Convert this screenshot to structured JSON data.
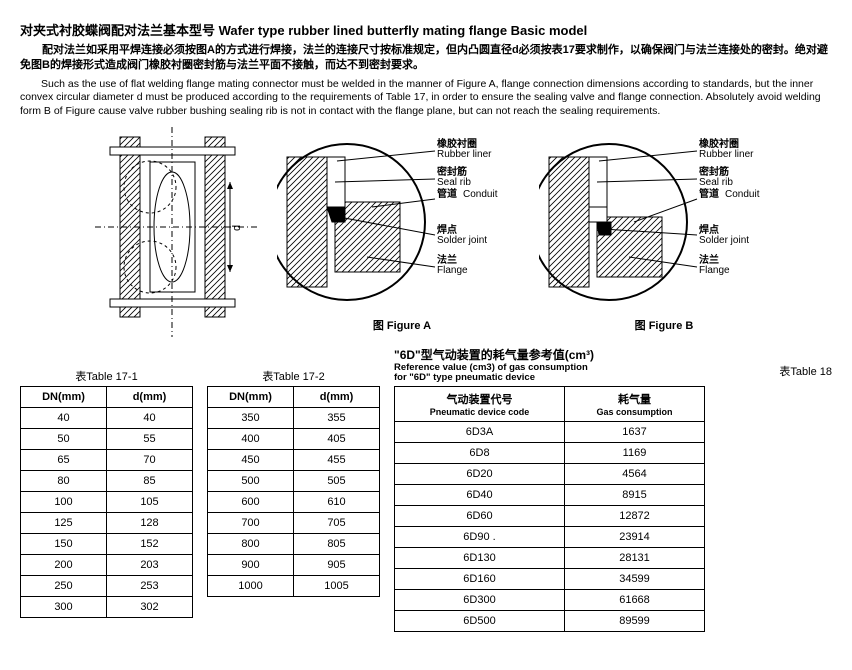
{
  "titles": {
    "main": "对夹式衬胶蝶阀配对法兰基本型号 Wafer type rubber lined butterfly mating flange Basic model",
    "para_cn": "配对法兰如采用平焊连接必须按图A的方式进行焊接，法兰的连接尺寸按标准规定，但内凸圆直径d必须按表17要求制作，以确保阀门与法兰连接处的密封。绝对避免图B的焊接形式造成阀门橡胶衬圈密封筋与法兰平面不接触，而达不到密封要求。",
    "para_en": "Such as the use of flat welding flange mating connector must be welded in the manner of Figure A, flange connection dimensions according to standards, but the inner convex circular diameter d must be produced according to the requirements of Table 17, in order to ensure the sealing valve and flange connection. Absolutely avoid welding form B of Figure cause valve rubber bushing sealing rib is not in contact with the flange plane, but can not reach the sealing requirements."
  },
  "fig_labels": {
    "rubber_liner_cn": "橡胶衬圈",
    "rubber_liner_en": "Rubber liner",
    "seal_rib_cn": "密封筋",
    "seal_rib_en": "Seal rib",
    "conduit_cn": "管道",
    "conduit_en": "Conduit",
    "solder_cn": "焊点",
    "solder_en": "Solder joint",
    "flange_cn": "法兰",
    "flange_en": "Flange",
    "figA": "图 Figure A",
    "figB": "图 Figure B",
    "d": "d"
  },
  "table17_1": {
    "caption": "表Table 17-1",
    "h1": "DN(mm)",
    "h2": "d(mm)",
    "rows": [
      [
        "40",
        "40"
      ],
      [
        "50",
        "55"
      ],
      [
        "65",
        "70"
      ],
      [
        "80",
        "85"
      ],
      [
        "100",
        "105"
      ],
      [
        "125",
        "128"
      ],
      [
        "150",
        "152"
      ],
      [
        "200",
        "203"
      ],
      [
        "250",
        "253"
      ],
      [
        "300",
        "302"
      ]
    ]
  },
  "table17_2": {
    "caption": "表Table 17-2",
    "h1": "DN(mm)",
    "h2": "d(mm)",
    "rows": [
      [
        "350",
        "355"
      ],
      [
        "400",
        "405"
      ],
      [
        "450",
        "455"
      ],
      [
        "500",
        "505"
      ],
      [
        "600",
        "610"
      ],
      [
        "700",
        "705"
      ],
      [
        "800",
        "805"
      ],
      [
        "900",
        "905"
      ],
      [
        "1000",
        "1005"
      ]
    ]
  },
  "table18": {
    "title_cn": "\"6D\"型气动装置的耗气量参考值(cm³)",
    "title_en1": "Reference value (cm3) of gas consumption",
    "title_en2": "for \"6D\" type pneumatic device",
    "caption": "表Table 18",
    "h1_cn": "气动装置代号",
    "h1_en": "Pneumatic device code",
    "h2_cn": "耗气量",
    "h2_en": "Gas consumption",
    "rows": [
      [
        "6D3A",
        "1637"
      ],
      [
        "6D8",
        "1169"
      ],
      [
        "6D20",
        "4564"
      ],
      [
        "6D40",
        "8915"
      ],
      [
        "6D60",
        "12872"
      ],
      [
        "6D90 .",
        "23914"
      ],
      [
        "6D130",
        "28131"
      ],
      [
        "6D160",
        "34599"
      ],
      [
        "6D300",
        "61668"
      ],
      [
        "6D500",
        "89599"
      ]
    ]
  }
}
